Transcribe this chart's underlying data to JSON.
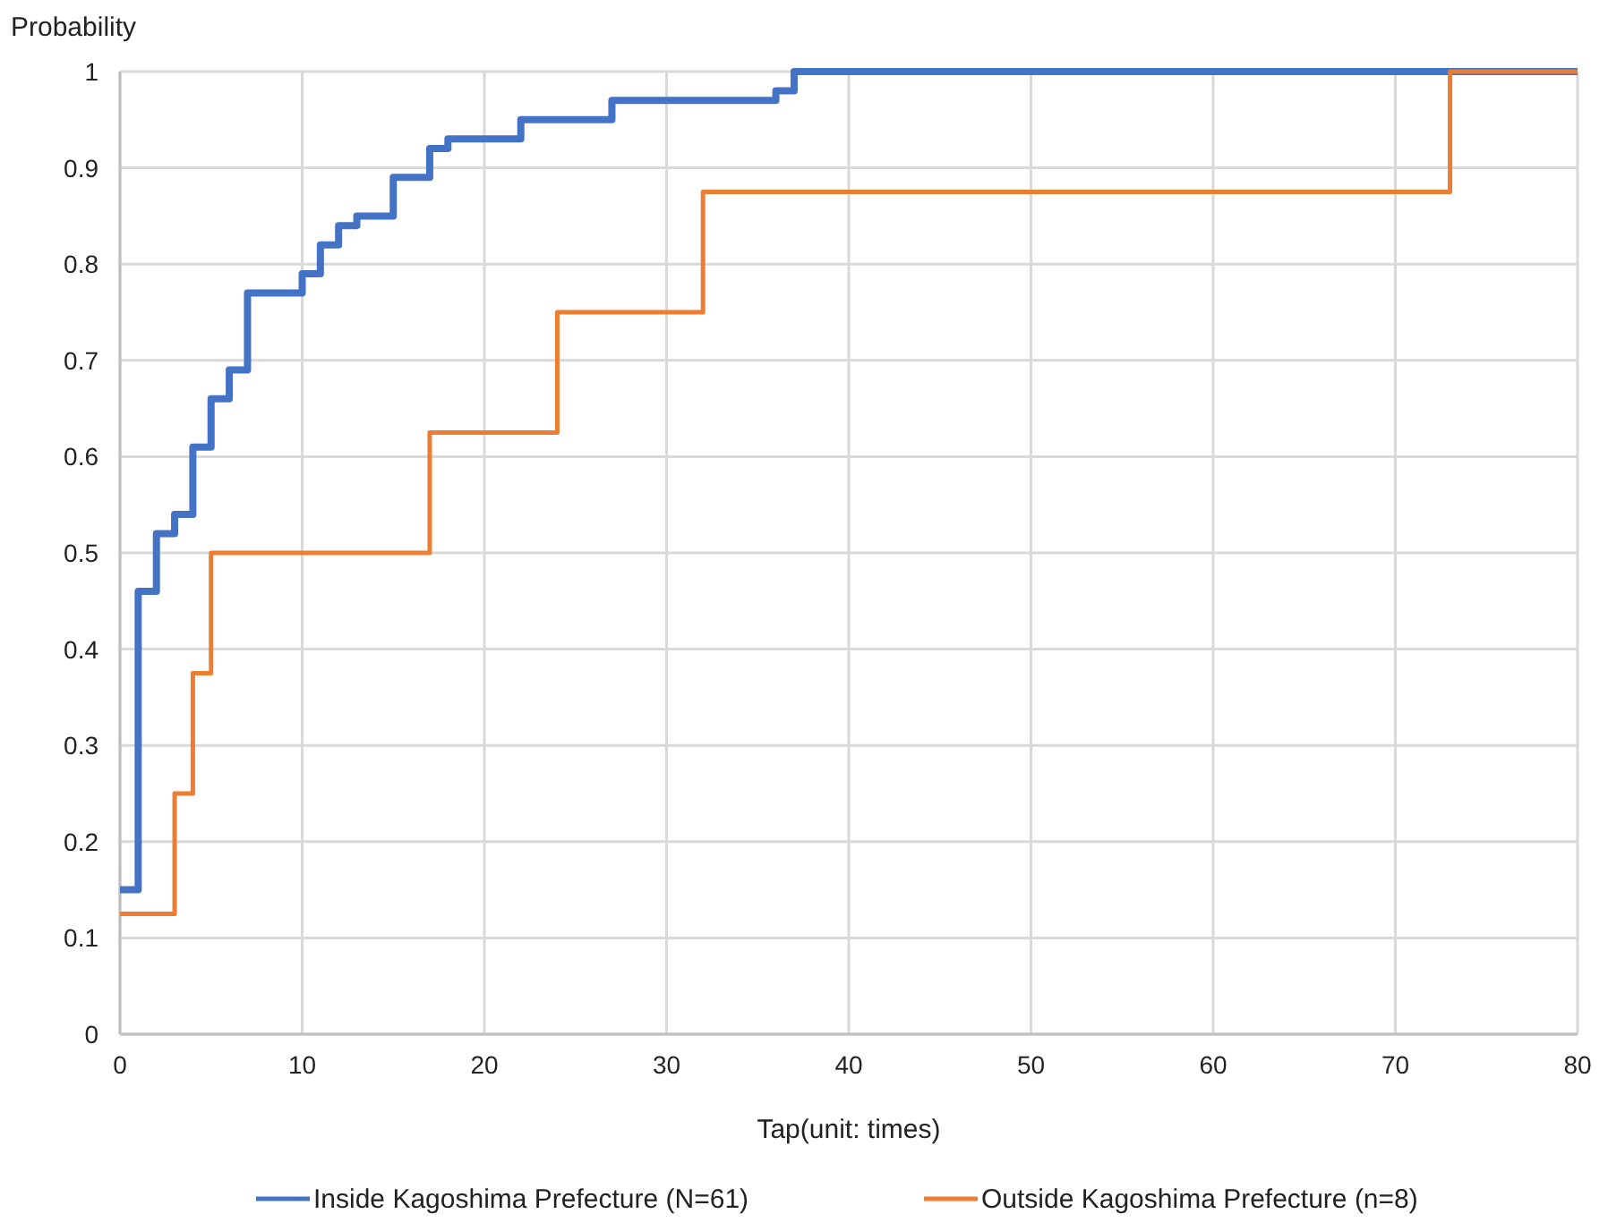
{
  "chart_data": {
    "type": "step",
    "ylabel": "Probability",
    "xlabel": "Tap(unit: times)",
    "xlim": [
      0,
      80
    ],
    "xticks": [
      0,
      10,
      20,
      30,
      40,
      50,
      60,
      70,
      80
    ],
    "ylim": [
      0,
      1
    ],
    "yticks": [
      0,
      0.1,
      0.2,
      0.3,
      0.4,
      0.5,
      0.6,
      0.7,
      0.8,
      0.9,
      1
    ],
    "grid": true,
    "legend": "bottom",
    "series": [
      {
        "name": "Inside Kagoshima Prefecture (N=61)",
        "color": "#4472c4",
        "x": [
          0,
          1,
          2,
          3,
          4,
          5,
          6,
          7,
          10,
          11,
          12,
          13,
          15,
          17,
          18,
          22,
          27,
          36,
          37,
          80
        ],
        "values": [
          0.15,
          0.46,
          0.52,
          0.54,
          0.61,
          0.66,
          0.69,
          0.77,
          0.79,
          0.82,
          0.84,
          0.85,
          0.89,
          0.92,
          0.93,
          0.95,
          0.97,
          0.98,
          1,
          1
        ]
      },
      {
        "name": "Outside Kagoshima Prefecture (n=8)",
        "color": "#ed7d31",
        "x": [
          0,
          3,
          4,
          5,
          17,
          24,
          32,
          73,
          80
        ],
        "values": [
          0.125,
          0.25,
          0.375,
          0.5,
          0.625,
          0.75,
          0.875,
          1,
          1
        ]
      }
    ]
  }
}
